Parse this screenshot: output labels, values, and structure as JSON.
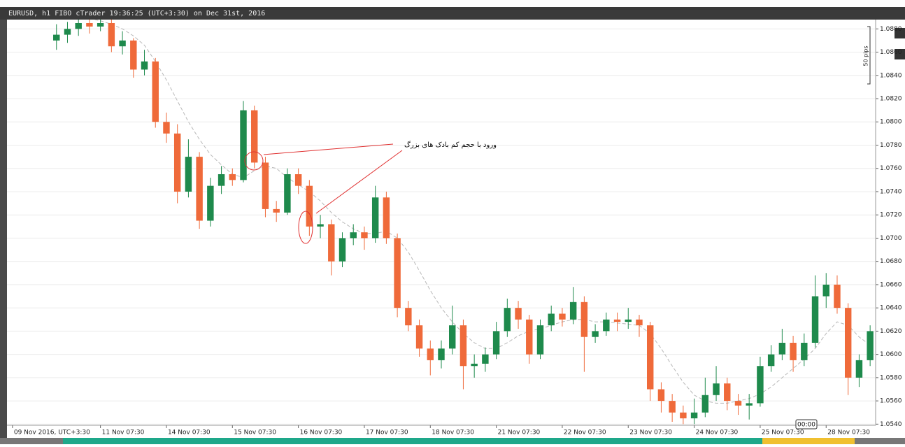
{
  "chart_data": {
    "type": "candlestick",
    "title": "EURUSD, h1 FIBO cTrader 19:36:25 (UTC+3:30) on Dec 31st, 2016",
    "annotation": "ورود با حجم کم بادک های بزرگ",
    "scale_label": "50 pips",
    "cursor_label": "00:00",
    "up_color": "#1e8a4c",
    "down_color": "#ef6a3a",
    "ma_color": "#b8b8b8",
    "grid": true,
    "ylim": [
      1.0539,
      1.0888
    ],
    "yticks": [
      {
        "value": 1.054,
        "label": "1.0540"
      },
      {
        "value": 1.056,
        "label": "1.0560"
      },
      {
        "value": 1.058,
        "label": "1.0580"
      },
      {
        "value": 1.06,
        "label": "1.0600"
      },
      {
        "value": 1.062,
        "label": "1.0620"
      },
      {
        "value": 1.064,
        "label": "1.0640"
      },
      {
        "value": 1.066,
        "label": "1.0660"
      },
      {
        "value": 1.068,
        "label": "1.0680"
      },
      {
        "value": 1.07,
        "label": "1.0700"
      },
      {
        "value": 1.072,
        "label": "1.0720"
      },
      {
        "value": 1.074,
        "label": "1.0740"
      },
      {
        "value": 1.076,
        "label": "1.0760"
      },
      {
        "value": 1.078,
        "label": "1.0780"
      },
      {
        "value": 1.08,
        "label": "1.0800"
      },
      {
        "value": 1.082,
        "label": "1.0820"
      },
      {
        "value": 1.084,
        "label": "1.0840"
      },
      {
        "value": 1.086,
        "label": "1.0860"
      },
      {
        "value": 1.088,
        "label": "1.0880"
      }
    ],
    "categories": [
      "09 Nov 2016, UTC+3:30",
      null,
      null,
      null,
      null,
      null,
      null,
      null,
      "11 Nov 07:30",
      null,
      null,
      null,
      null,
      null,
      "14 Nov 07:30",
      null,
      null,
      null,
      null,
      null,
      "15 Nov 07:30",
      null,
      null,
      null,
      null,
      null,
      "16 Nov 07:30",
      null,
      null,
      null,
      null,
      null,
      "17 Nov 07:30",
      null,
      null,
      null,
      null,
      null,
      "18 Nov 07:30",
      null,
      null,
      null,
      null,
      null,
      "21 Nov 07:30",
      null,
      null,
      null,
      null,
      null,
      "22 Nov 07:30",
      null,
      null,
      null,
      null,
      null,
      "23 Nov 07:30",
      null,
      null,
      null,
      null,
      null,
      "24 Nov 07:30",
      null,
      null,
      null,
      null,
      null,
      "25 Nov 07:30",
      null,
      null,
      null,
      null,
      null,
      "28 Nov 07:30",
      null,
      null,
      null,
      null
    ],
    "open": [
      null,
      null,
      null,
      null,
      1.087,
      1.0875,
      1.088,
      1.0885,
      1.0882,
      1.0885,
      1.0865,
      1.087,
      1.0845,
      1.0852,
      1.08,
      1.079,
      1.074,
      1.077,
      1.0715,
      1.0745,
      1.0755,
      1.075,
      1.081,
      1.0765,
      1.0725,
      1.0722,
      1.0755,
      1.0745,
      1.071,
      1.0712,
      1.068,
      1.07,
      1.0705,
      1.07,
      1.0735,
      1.07,
      1.064,
      1.0625,
      1.0605,
      1.0595,
      1.0605,
      1.0625,
      1.059,
      1.0592,
      1.06,
      1.062,
      1.064,
      1.063,
      1.06,
      1.0625,
      1.0635,
      1.063,
      1.0645,
      1.0615,
      1.062,
      1.063,
      1.0628,
      1.063,
      1.0625,
      1.057,
      1.056,
      1.055,
      1.0545,
      1.055,
      1.0565,
      1.0575,
      1.056,
      1.0556,
      1.0558,
      1.059,
      1.06,
      1.061,
      1.0595,
      1.061,
      1.065,
      1.066,
      1.064,
      1.058,
      1.0595
    ],
    "high": [
      null,
      null,
      null,
      null,
      1.0884,
      1.0886,
      1.089,
      1.089,
      1.0892,
      1.0888,
      1.0878,
      1.0872,
      1.0862,
      1.0855,
      1.0808,
      1.0798,
      1.0785,
      1.0774,
      1.0752,
      1.0762,
      1.076,
      1.0818,
      1.0814,
      1.077,
      1.0732,
      1.076,
      1.076,
      1.075,
      1.072,
      1.0716,
      1.0705,
      1.0712,
      1.071,
      1.0745,
      1.074,
      1.0704,
      1.0646,
      1.063,
      1.0612,
      1.0612,
      1.0642,
      1.063,
      1.06,
      1.0606,
      1.0628,
      1.0648,
      1.0646,
      1.0634,
      1.063,
      1.0642,
      1.064,
      1.0658,
      1.065,
      1.0626,
      1.0636,
      1.0636,
      1.064,
      1.0634,
      1.0628,
      1.0576,
      1.0566,
      1.0556,
      1.0562,
      1.058,
      1.059,
      1.058,
      1.0566,
      1.0566,
      1.0598,
      1.0608,
      1.0622,
      1.0616,
      1.0618,
      1.0668,
      1.067,
      1.0668,
      1.0644,
      1.06,
      1.0625
    ],
    "low": [
      null,
      null,
      null,
      null,
      1.0862,
      1.0868,
      1.0874,
      1.0876,
      1.0878,
      1.086,
      1.0858,
      1.0838,
      1.084,
      1.0795,
      1.0782,
      1.073,
      1.0735,
      1.0708,
      1.071,
      1.0738,
      1.0745,
      1.0748,
      1.076,
      1.0718,
      1.0714,
      1.072,
      1.0738,
      1.0702,
      1.07,
      1.0668,
      1.0675,
      1.0694,
      1.069,
      1.0696,
      1.0695,
      1.0632,
      1.062,
      1.0598,
      1.0582,
      1.0588,
      1.06,
      1.057,
      1.058,
      1.0585,
      1.0596,
      1.0615,
      1.0622,
      1.0592,
      1.0596,
      1.062,
      1.0624,
      1.0626,
      1.0585,
      1.061,
      1.0616,
      1.062,
      1.0622,
      1.0615,
      1.056,
      1.055,
      1.0542,
      1.054,
      1.054,
      1.0546,
      1.056,
      1.0552,
      1.0548,
      1.0544,
      1.0555,
      1.0585,
      1.0595,
      1.0585,
      1.059,
      1.0606,
      1.064,
      1.0635,
      1.0565,
      1.0572,
      1.059
    ],
    "close": [
      null,
      null,
      null,
      null,
      1.0875,
      1.088,
      1.0885,
      1.0882,
      1.0885,
      1.0865,
      1.087,
      1.0845,
      1.0852,
      1.08,
      1.079,
      1.074,
      1.077,
      1.0715,
      1.0745,
      1.0755,
      1.075,
      1.081,
      1.0765,
      1.0725,
      1.0722,
      1.0755,
      1.0745,
      1.071,
      1.0712,
      1.068,
      1.07,
      1.0705,
      1.07,
      1.0735,
      1.07,
      1.064,
      1.0625,
      1.0605,
      1.0595,
      1.0605,
      1.0625,
      1.059,
      1.0592,
      1.06,
      1.062,
      1.064,
      1.063,
      1.06,
      1.0625,
      1.0635,
      1.063,
      1.0645,
      1.0615,
      1.062,
      1.063,
      1.0628,
      1.063,
      1.0625,
      1.057,
      1.056,
      1.055,
      1.0545,
      1.055,
      1.0565,
      1.0575,
      1.056,
      1.0556,
      1.0558,
      1.059,
      1.06,
      1.061,
      1.0595,
      1.061,
      1.065,
      1.066,
      1.064,
      1.058,
      1.0595,
      1.062
    ],
    "ma": [
      null,
      null,
      null,
      null,
      1.0895,
      1.0893,
      1.0891,
      1.0889,
      1.0887,
      1.0884,
      1.088,
      1.0874,
      1.0866,
      1.0852,
      1.0836,
      1.0818,
      1.08,
      1.0785,
      1.0772,
      1.0763,
      1.0755,
      1.0752,
      1.0758,
      1.0762,
      1.076,
      1.0752,
      1.0746,
      1.074,
      1.0732,
      1.0722,
      1.0714,
      1.0708,
      1.0704,
      1.0704,
      1.0706,
      1.07,
      1.0688,
      1.0672,
      1.0655,
      1.064,
      1.0628,
      1.0618,
      1.061,
      1.0605,
      1.0605,
      1.061,
      1.0616,
      1.062,
      1.0622,
      1.0625,
      1.0628,
      1.063,
      1.063,
      1.0628,
      1.0628,
      1.0627,
      1.0626,
      1.0625,
      1.0618,
      1.0605,
      1.059,
      1.0576,
      1.0565,
      1.056,
      1.0558,
      1.0558,
      1.056,
      1.0562,
      1.0566,
      1.0572,
      1.058,
      1.0588,
      1.0596,
      1.0605,
      1.0618,
      1.0628,
      1.0625,
      1.0615,
      1.0608
    ]
  }
}
